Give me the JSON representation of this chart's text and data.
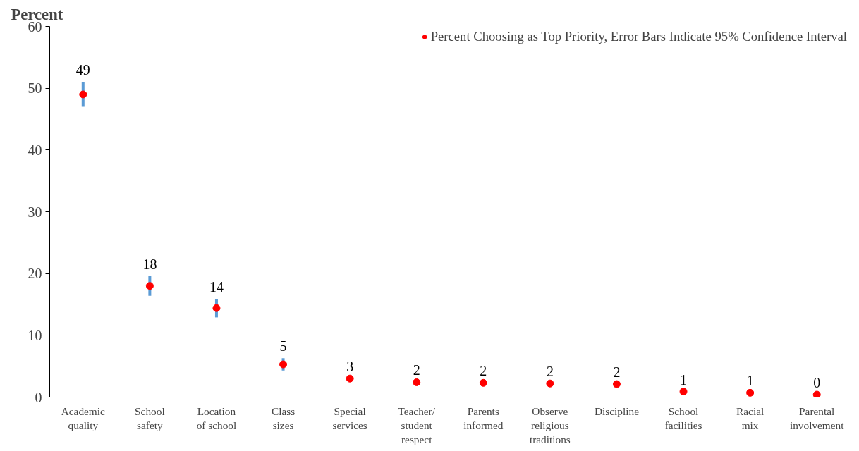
{
  "chart_data": {
    "type": "scatter",
    "ylabel": "Percent",
    "categories": [
      "Academic quality",
      "School safety",
      "Location of school",
      "Class sizes",
      "Special services",
      "Teacher/ student respect",
      "Parents informed",
      "Observe religious traditions",
      "Discipline",
      "School facilities",
      "Racial mix",
      "Parental involvement"
    ],
    "series": [
      {
        "name": "Percent Choosing as Top Priority, Error Bars Indicate 95% Confidence Interval",
        "color": "#ff0000",
        "values": [
          49,
          18,
          14.4,
          5.3,
          3,
          2.4,
          2.3,
          2.2,
          2.1,
          0.9,
          0.7,
          0.4
        ],
        "errors": [
          2,
          1.6,
          1.5,
          1,
          null,
          null,
          null,
          null,
          null,
          null,
          null,
          null
        ],
        "value_labels": [
          "49",
          "18",
          "14",
          "5",
          "3",
          "2",
          "2",
          "2",
          "2",
          "1",
          "1",
          "0"
        ]
      }
    ],
    "ylim": [
      0,
      60
    ],
    "yticks": [
      0,
      10,
      20,
      30,
      40,
      50,
      60
    ],
    "grid": false,
    "legend": "top",
    "marker": "circle"
  }
}
